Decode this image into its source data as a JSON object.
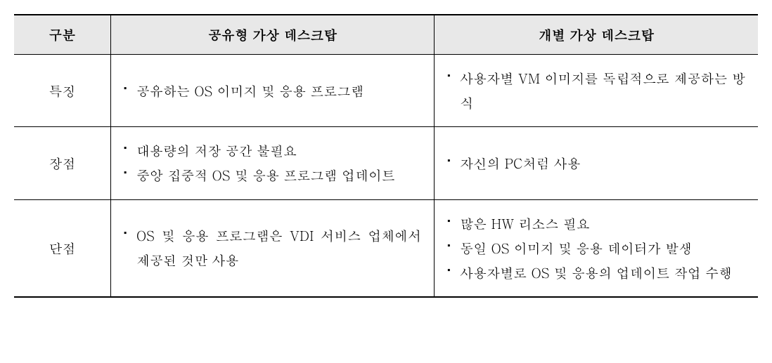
{
  "table": {
    "columns": [
      "구분",
      "공유형 가상 데스크탑",
      "개별 가상 데스크탑"
    ],
    "column_widths": [
      "13%",
      "43.5%",
      "43.5%"
    ],
    "header_bg_color": "#e8e8e8",
    "border_color": "#000000",
    "font_size_pt": 19,
    "line_height": 1.85,
    "rows": [
      {
        "label": "특징",
        "shared": [
          "공유하는 OS 이미지 및 응용 프로그램"
        ],
        "individual": [
          "사용자별 VM 이미지를 독립적으로 제공하는 방식"
        ]
      },
      {
        "label": "장점",
        "shared": [
          "대용량의 저장 공간 불필요",
          "중앙 집중적 OS 및 응용 프로그램 업데이트"
        ],
        "individual": [
          "자신의 PC처럼 사용"
        ]
      },
      {
        "label": "단점",
        "shared": [
          "OS 및 응용 프로그램은 VDI 서비스 업체에서 제공된 것만 사용"
        ],
        "individual": [
          "많은 HW 리소스 필요",
          "동일 OS 이미지 및 응용 데이터가 발생",
          "사용자별로 OS 및 응용의 업데이트 작업 수행"
        ]
      }
    ]
  }
}
